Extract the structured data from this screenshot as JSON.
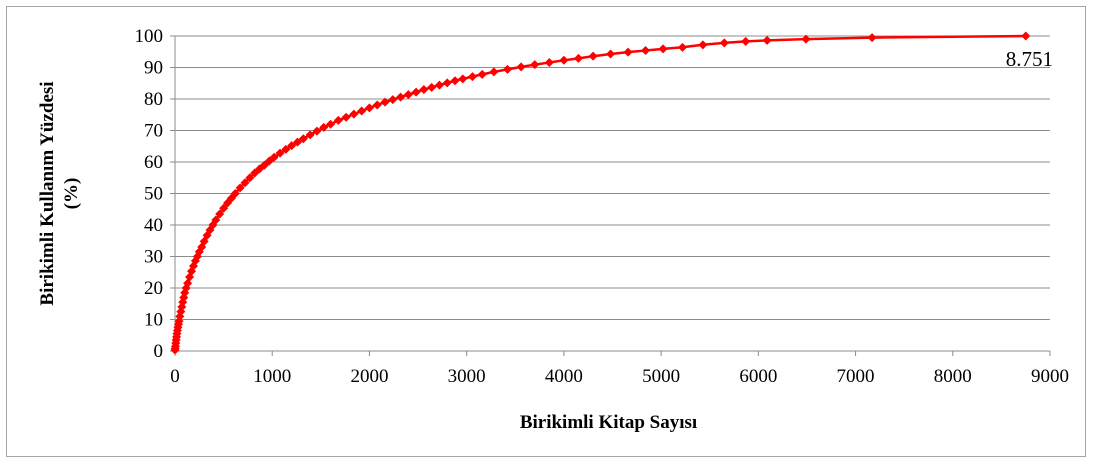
{
  "chart_data": {
    "type": "line",
    "xlabel": "Birikimli Kitap Sayısı",
    "ylabel_line1": "Birikimli Kullanım Yüzdesi",
    "ylabel_line2": "(%)",
    "xlim": [
      0,
      9000
    ],
    "ylim": [
      0,
      100
    ],
    "x_ticks": [
      "0",
      "1000",
      "2000",
      "3000",
      "4000",
      "5000",
      "6000",
      "7000",
      "8000",
      "9000"
    ],
    "y_ticks": [
      "0",
      "10",
      "20",
      "30",
      "40",
      "50",
      "60",
      "70",
      "80",
      "90",
      "100"
    ],
    "grid": "horizontal",
    "series_color": "#ff0000",
    "annotation": {
      "text": "8.751",
      "x": 8751,
      "y": 100
    },
    "series": [
      {
        "x": [
          0,
          2,
          5,
          8,
          12,
          16,
          20,
          25,
          30,
          36,
          42,
          50,
          60,
          70,
          80,
          90,
          100,
          115,
          130,
          150,
          170,
          190,
          210,
          230,
          250,
          275,
          300,
          330,
          360,
          390,
          420,
          460,
          500,
          540,
          580,
          620,
          670,
          720,
          770,
          820,
          870,
          920,
          970,
          1020,
          1080,
          1140,
          1200,
          1260,
          1320,
          1390,
          1460,
          1530,
          1600,
          1680,
          1760,
          1840,
          1920,
          2000,
          2080,
          2160,
          2240,
          2320,
          2400,
          2480,
          2560,
          2640,
          2720,
          2800,
          2880,
          2960,
          3060,
          3160,
          3280,
          3420,
          3560,
          3700,
          3850,
          4000,
          4150,
          4300,
          4480,
          4660,
          4840,
          5020,
          5220,
          5430,
          5650,
          5870,
          6090,
          6490,
          7170,
          8751
        ],
        "y": [
          0.3,
          0.8,
          1.5,
          2.5,
          3.5,
          4.5,
          5.5,
          6.5,
          7.5,
          8.5,
          9.5,
          11,
          12.5,
          14,
          15.5,
          17,
          18.5,
          20,
          21.5,
          23.5,
          25.3,
          27,
          28.6,
          30,
          31.5,
          33,
          34.8,
          36.7,
          38.4,
          40,
          41.6,
          43.5,
          45.3,
          47,
          48.5,
          50,
          51.8,
          53.4,
          55,
          56.5,
          57.8,
          59,
          60.3,
          61.5,
          62.8,
          64,
          65.2,
          66.3,
          67.4,
          68.6,
          69.8,
          71,
          72,
          73.2,
          74.2,
          75.2,
          76.2,
          77.2,
          78.1,
          79,
          79.8,
          80.6,
          81.4,
          82.2,
          83,
          83.7,
          84.4,
          85.1,
          85.8,
          86.4,
          87.1,
          87.8,
          88.6,
          89.4,
          90.2,
          90.9,
          91.6,
          92.3,
          92.9,
          93.6,
          94.3,
          94.9,
          95.4,
          95.9,
          96.4,
          97.2,
          97.8,
          98.3,
          98.6,
          99.0,
          99.5,
          100.0
        ]
      }
    ]
  }
}
